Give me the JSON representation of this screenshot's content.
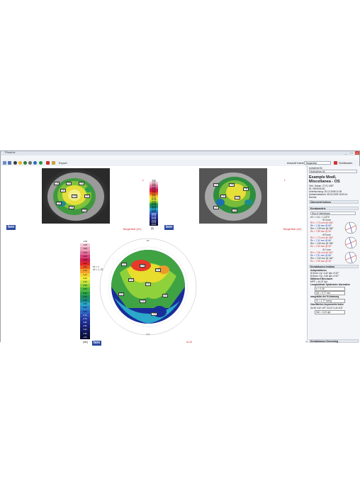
{
  "window": {
    "title": "Phoenix",
    "controls": [
      "_",
      "□",
      "×"
    ]
  },
  "menu": [
    "Datei",
    "Analyse",
    "Ansicht",
    "Optionen",
    "Werkzeuge",
    "?"
  ],
  "toolbar": {
    "export_label": "Export",
    "ansicht_label": "Ansicht Karte",
    "ansicht_value": "Tangential",
    "close_label": "Schliessen"
  },
  "maps": {
    "eye_top_left": "L",
    "eye_top_right": "L",
    "label_1": "Tangential (#1)",
    "label_2": "Tangential (#2)",
    "diff_label": "#1-#2",
    "logo": "bon",
    "scale_unit": "[D]",
    "diff_unit": "[mm]",
    "diff_info": [
      "e1 = 1",
      "e2 = 1, 2370"
    ],
    "degree_top": "90°",
    "degree_bottom": "270°",
    "top_scale": [
      "0.00",
      "1.00",
      "2.00",
      "3.00",
      "4.00",
      "5.00",
      "6.00",
      "7.00",
      "8.00",
      "9.00",
      "10.00",
      "11.00",
      "12.00",
      "13.00",
      "14.00",
      "15.00",
      "16.00",
      "17.00",
      "18.00",
      "19.00",
      "20.00",
      "21.00",
      "22.00",
      "23.00",
      "24.00",
      "25.00"
    ],
    "diff_scale": [
      "-0.30",
      "-0.25",
      "-0.20",
      "-0.15",
      "-0.10",
      "-0.05",
      "0.00",
      "0.05",
      "0.10",
      "0.15",
      "0.20",
      "0.25",
      "0.30",
      "0.35",
      "0.40",
      "0.45",
      "0.50",
      "0.55",
      "0.60",
      "0.65",
      "0.70",
      "0.75",
      "0.80",
      "0.85",
      "0.90",
      "0.95",
      "1.00"
    ]
  },
  "sidebar": {
    "select_label": "Aufnahme für",
    "select_value": "Aufnahme #1",
    "patient_name": "Example Modl, Miscellanea - OS",
    "patient_lines": [
      "Geb. Datum: 27.01.1987",
      "ID: 0000001102",
      "Untersuchung: 20.12.2008 11:05",
      "Aufnahmedatum: 05.03.2009 16:09:14",
      "Normal"
    ],
    "sec_overview": "Übersicht Indizes",
    "sec_keratometry": "Keratometrie",
    "kera_select": "Sim-K Meridiane",
    "kera_line1": "e0 = 1  e1 = 1,2370",
    "groups": [
      {
        "title": "Ø 3 mm",
        "lines": [
          "RH = 7,70 mm  @ 156°",
          "Rh = 7,48 mm  @ 66°",
          "Rm = 7,59 mm  @ 156°",
          "Ro = 7,59 mm  @ 30°"
        ]
      },
      {
        "title": "Ø 5 mm",
        "lines": [
          "RH = 7,73 mm  @ 156°",
          "Rh = 7,42 mm  @ 66°",
          "Rm = 7,60 mm  @ 156°",
          "Ro = 7,53 mm  @ 30°"
        ]
      },
      {
        "title": "Ø 7 mm",
        "lines": [
          "RH = 7,81 mm  @ 160°",
          "Rh = 7,51 mm  @ 66°",
          "Rm = 7,62 mm  @ 160°",
          "Ro = 7,59 mm  @ 30°"
        ]
      }
    ],
    "sec_keratoconus": "Keratokonus Indizes",
    "kc_lines": [
      "Astigmatismus",
      "Ø 3mm: Cyl -0,32 dpt ≮ 167°",
      "Ø 5mm: Cyl -0,36 dpt ≮ 167°",
      "Mittelwert Brechwert",
      "MPP = 44,37 dpt",
      "Longitudinale Sphärische Aberration",
      "Integration der Krümmung",
      "Oberflächen Asymmetrie Index"
    ],
    "kc_value1": "e = 0,46",
    "kc_value2": "Q6 = 0,77 mm",
    "kc_value3": "IC = 1,77 mm/g",
    "kc_value4": "44,36  0,42  157°  44,07  0,44  115°",
    "kc_value5": "SAI = 0,20 dpt",
    "sec_screening": "Keratokonus Screening"
  },
  "colors": {
    "accent_red": "#d22a2a",
    "logo_blue": "#2b4aa0"
  }
}
